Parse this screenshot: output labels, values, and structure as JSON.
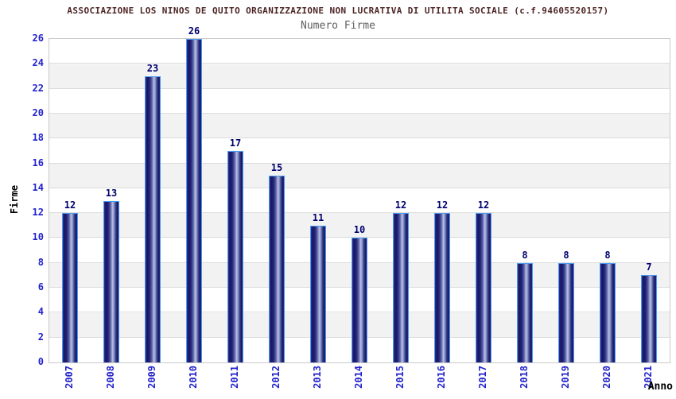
{
  "header": {
    "title": "ASSOCIAZIONE LOS NINOS DE QUITO ORGANIZZAZIONE NON LUCRATIVA DI UTILITA SOCIALE (c.f.94605520157)",
    "subtitle": "Numero Firme"
  },
  "chart_data": {
    "type": "bar",
    "title": "Numero Firme",
    "categories": [
      "2007",
      "2008",
      "2009",
      "2010",
      "2011",
      "2012",
      "2013",
      "2014",
      "2015",
      "2016",
      "2017",
      "2018",
      "2019",
      "2020",
      "2021"
    ],
    "values": [
      12,
      13,
      23,
      26,
      17,
      15,
      11,
      10,
      12,
      12,
      12,
      8,
      8,
      8,
      7
    ],
    "xlabel": "Anno",
    "ylabel": "Firme",
    "ylim": [
      0,
      26
    ],
    "ytick_step": 2,
    "grid": true,
    "legend_position": "none",
    "colors": {
      "title_text": "#4d2424",
      "subtitle_text": "#5f5f5f",
      "axis_tick_text": "#2222cc",
      "value_label_text": "#000070",
      "bar_border": "#4a9af0",
      "bar_dark": "#17175e",
      "bar_light": "#b8c0e4",
      "band_gray": "#f2f2f2",
      "gridline": "#dcdcdc"
    }
  }
}
